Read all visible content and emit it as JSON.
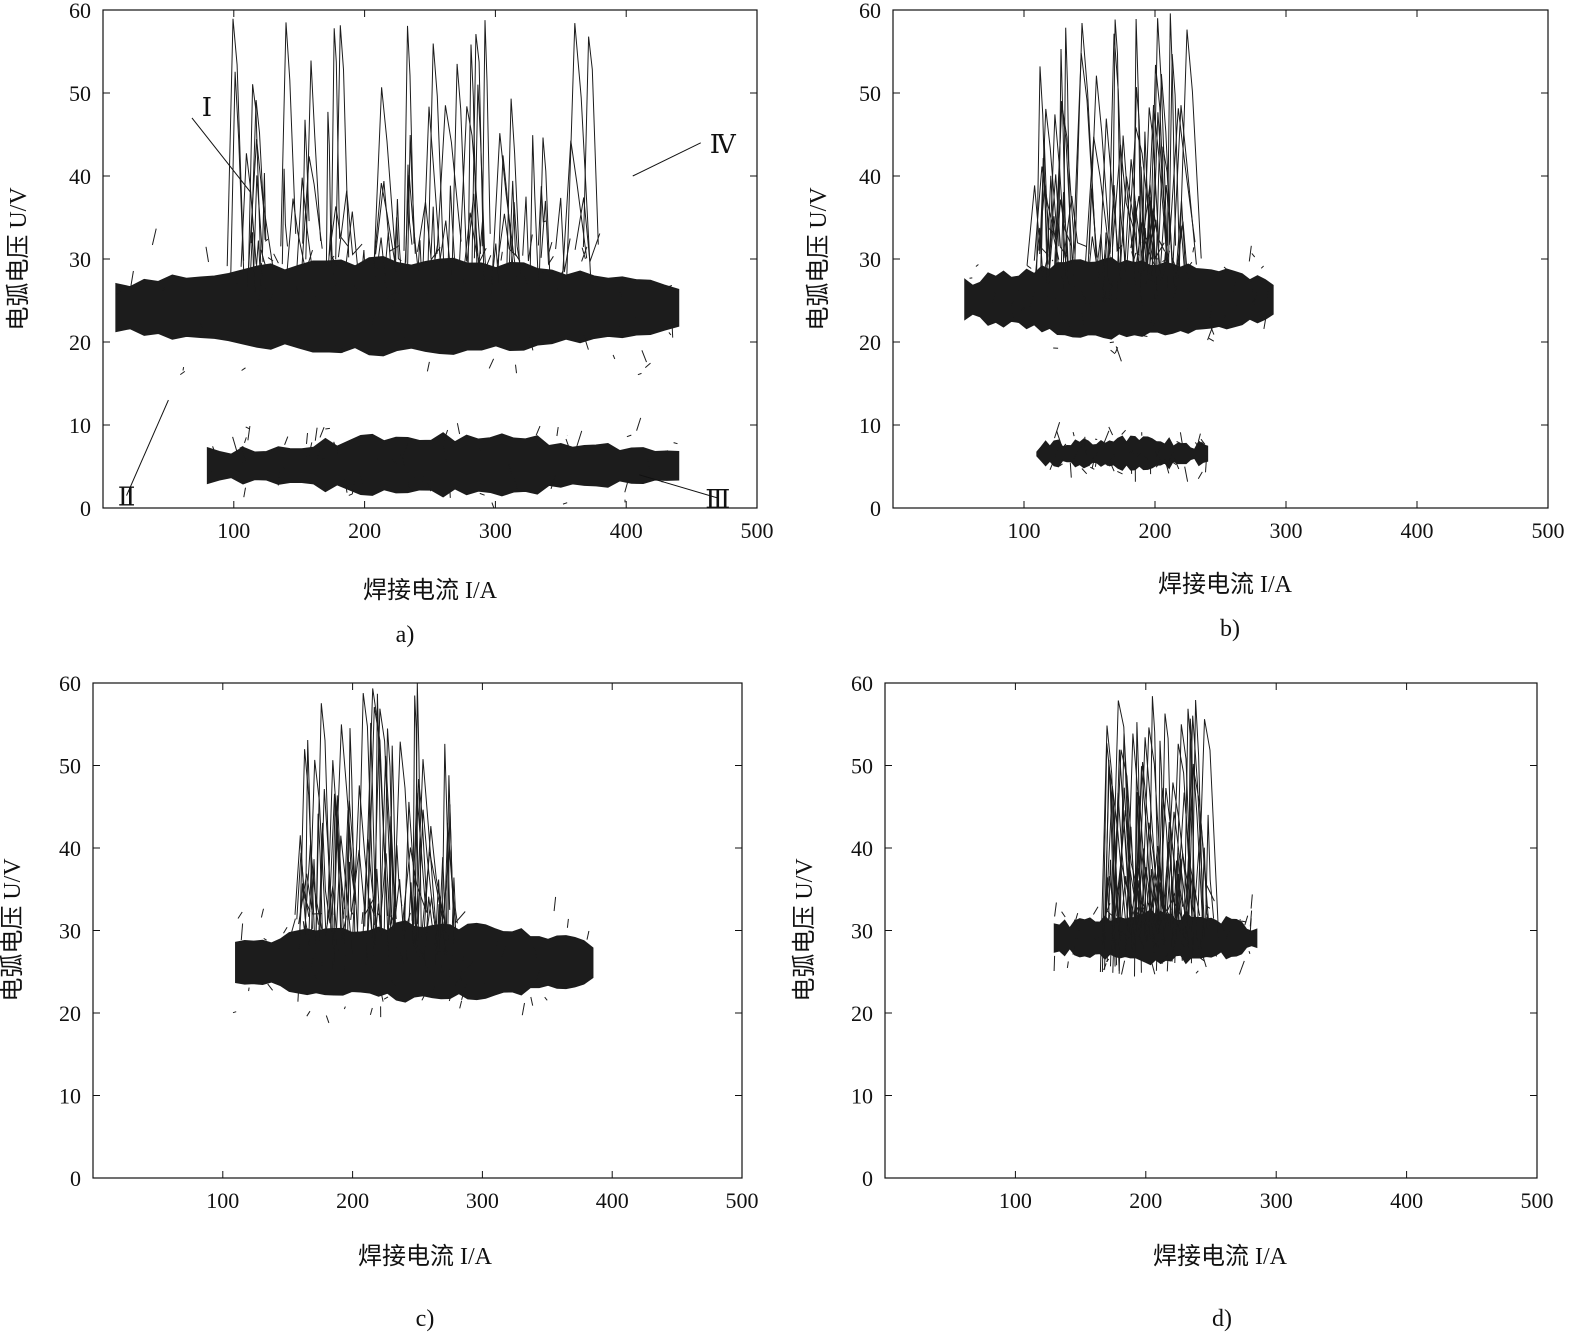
{
  "chart_data": [
    {
      "type": "line",
      "caption": "a)",
      "xlabel": "焊接电流 I/A",
      "ylabel": "电弧电压 U/V",
      "xlim": [
        0,
        500
      ],
      "ylim": [
        0,
        60
      ],
      "xticks": [
        100,
        200,
        300,
        400,
        500
      ],
      "yticks": [
        0,
        10,
        20,
        30,
        40,
        50,
        60
      ],
      "annotations": [
        {
          "text": "Ⅰ",
          "x": 113,
          "y": 38
        },
        {
          "text": "Ⅱ",
          "x": 50,
          "y": 13
        },
        {
          "text": "Ⅲ",
          "x": 410,
          "y": 4
        },
        {
          "text": "Ⅳ",
          "x": 405,
          "y": 40
        }
      ],
      "series": [
        {
          "cluster": "main-band",
          "x_range": [
            10,
            440
          ],
          "y_center": 24,
          "y_spread": 5
        },
        {
          "cluster": "short-circuit-band",
          "x_range": [
            80,
            440
          ],
          "y_center": 5,
          "y_spread": 3
        },
        {
          "cluster": "spikes",
          "x_range": [
            100,
            380
          ],
          "y_max": 59
        }
      ]
    },
    {
      "type": "line",
      "caption": "b)",
      "xlabel": "焊接电流 I/A",
      "ylabel": "电弧电压 U/V",
      "xlim": [
        0,
        500
      ],
      "ylim": [
        0,
        60
      ],
      "xticks": [
        100,
        200,
        300,
        400,
        500
      ],
      "yticks": [
        0,
        10,
        20,
        30,
        40,
        50,
        60
      ],
      "series": [
        {
          "cluster": "main-band",
          "x_range": [
            55,
            290
          ],
          "y_center": 25,
          "y_spread": 4
        },
        {
          "cluster": "low-band",
          "x_range": [
            110,
            240
          ],
          "y_center": 6.5,
          "y_spread": 1.5
        },
        {
          "cluster": "spikes",
          "x_range": [
            110,
            230
          ],
          "y_max": 60
        }
      ]
    },
    {
      "type": "line",
      "caption": "c)",
      "xlabel": "焊接电流 I/A",
      "ylabel": "电弧电压 U/V",
      "xlim": [
        0,
        500
      ],
      "ylim": [
        0,
        60
      ],
      "xticks": [
        100,
        200,
        300,
        400,
        500
      ],
      "yticks": [
        0,
        10,
        20,
        30,
        40,
        50,
        60
      ],
      "series": [
        {
          "cluster": "main-band",
          "x_range": [
            110,
            385
          ],
          "y_center": 26,
          "y_spread": 4
        },
        {
          "cluster": "spikes",
          "x_range": [
            160,
            280
          ],
          "y_max": 60
        }
      ]
    },
    {
      "type": "line",
      "caption": "d)",
      "xlabel": "焊接电流 I/A",
      "ylabel": "电弧电压 U/V",
      "xlim": [
        0,
        500
      ],
      "ylim": [
        0,
        60
      ],
      "xticks": [
        100,
        200,
        300,
        400,
        500
      ],
      "yticks": [
        0,
        10,
        20,
        30,
        40,
        50,
        60
      ],
      "series": [
        {
          "cluster": "main-band",
          "x_range": [
            130,
            285
          ],
          "y_center": 29,
          "y_spread": 2.5
        },
        {
          "cluster": "spikes",
          "x_range": [
            170,
            250
          ],
          "y_max": 59
        }
      ]
    }
  ]
}
